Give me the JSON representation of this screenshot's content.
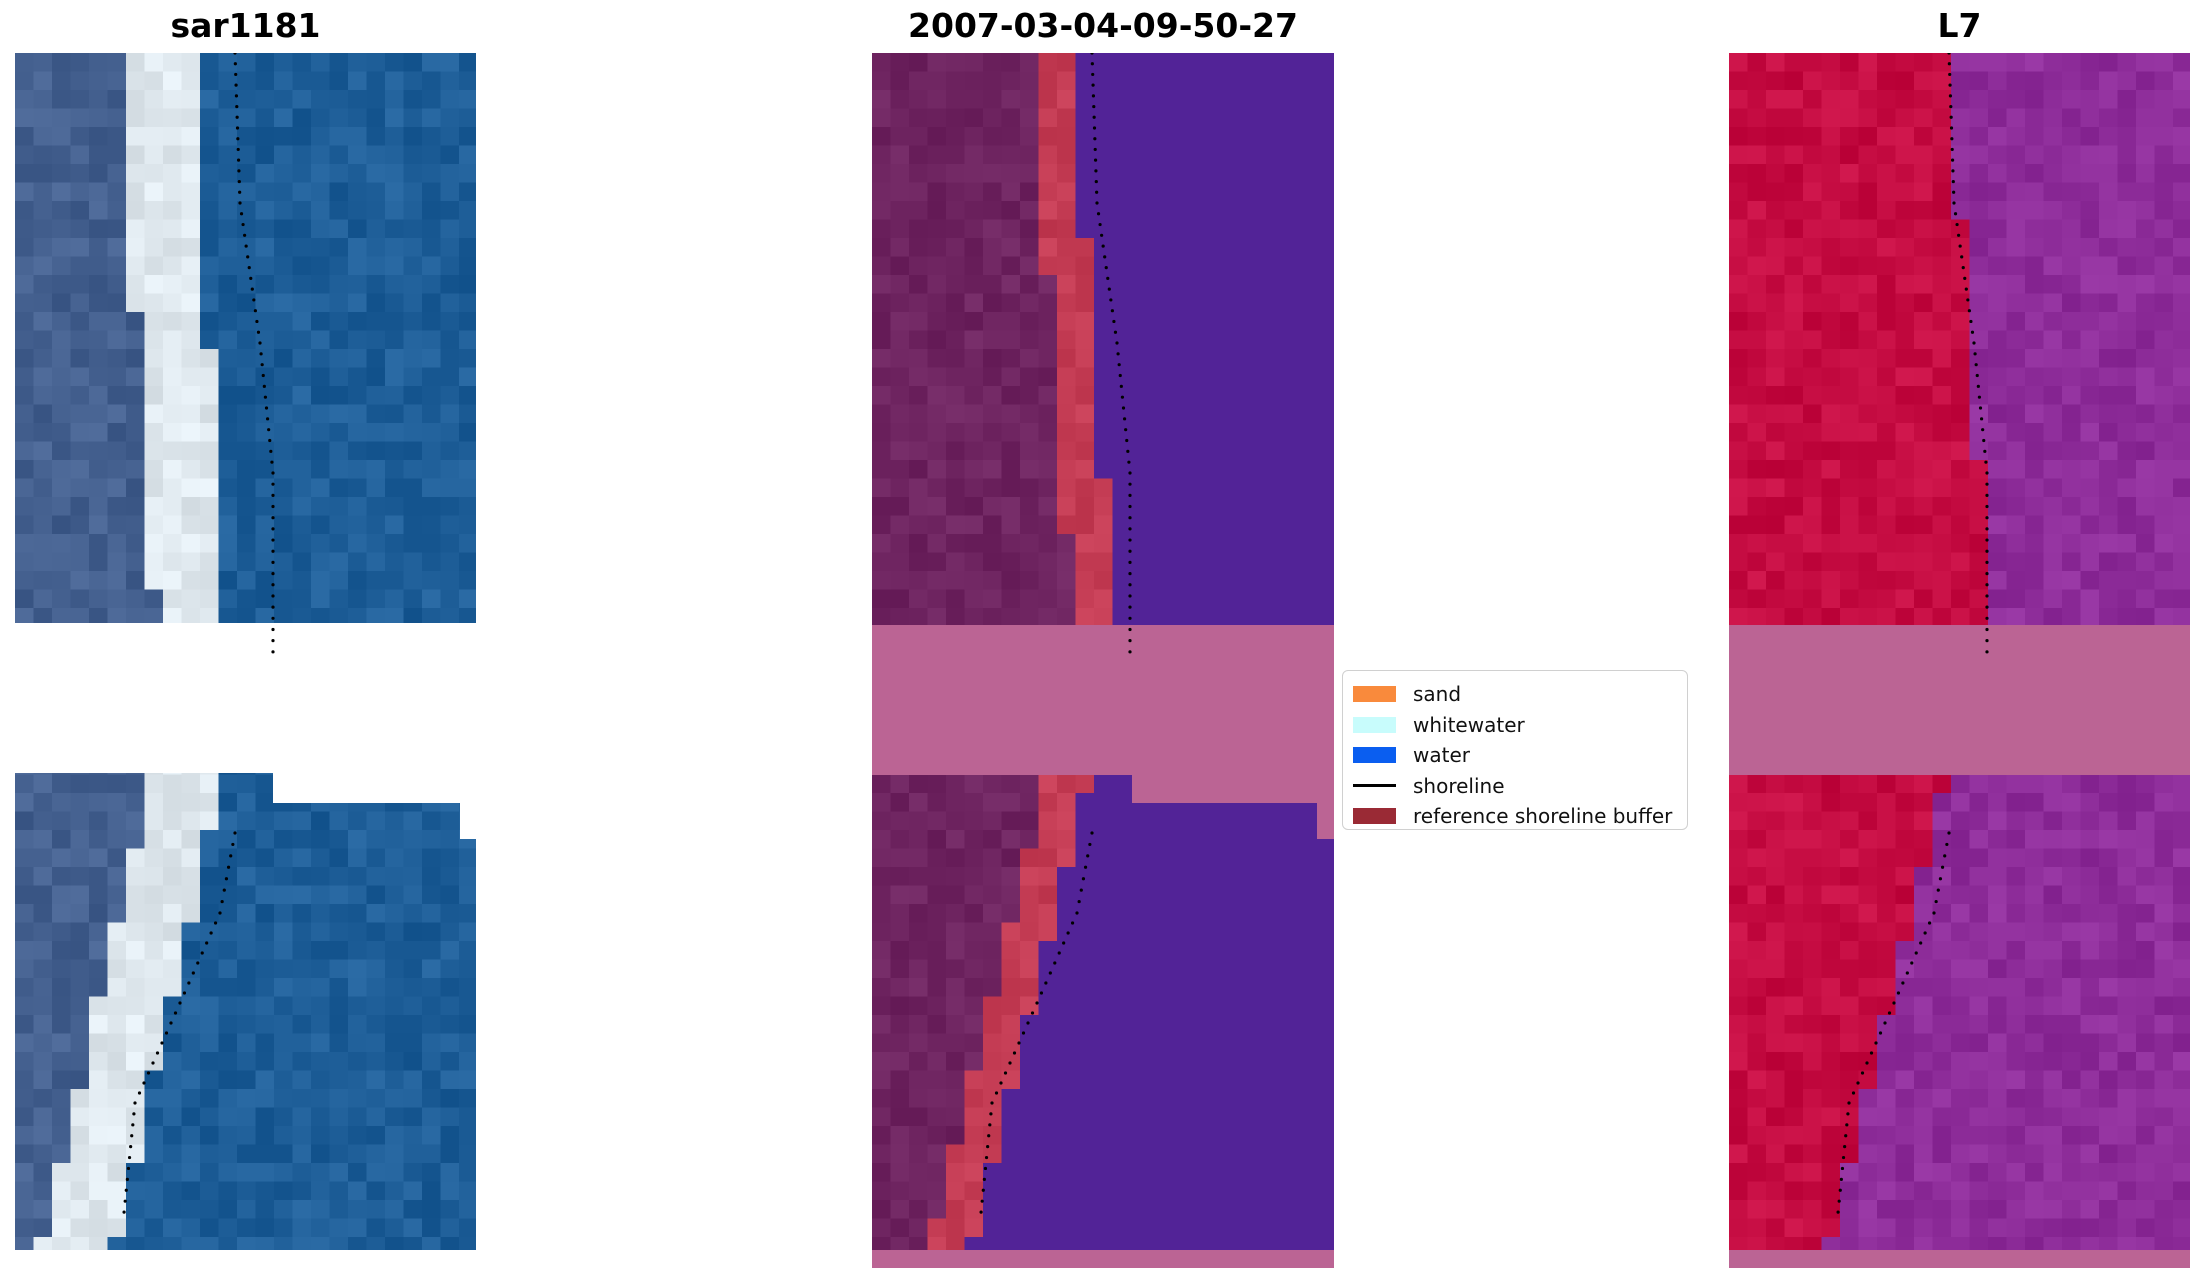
{
  "panels": [
    {
      "title": "sar1181"
    },
    {
      "title": "2007-03-04-09-50-27"
    },
    {
      "title": "L7"
    }
  ],
  "legend": {
    "items": [
      {
        "label": "sand",
        "color": "#f98a3c",
        "kind": "patch"
      },
      {
        "label": "whitewater",
        "color": "#c8fcfc",
        "kind": "patch"
      },
      {
        "label": "water",
        "color": "#0a5ef0",
        "kind": "patch"
      },
      {
        "label": "shoreline",
        "color": "#000000",
        "kind": "line"
      },
      {
        "label": "reference shoreline buffer",
        "color": "#9a2a35",
        "kind": "patch"
      }
    ]
  },
  "colors": {
    "rgb_land": "#44608f",
    "rgb_sand": "#dfe8ee",
    "rgb_water": "#1e5e98",
    "class_land": "#6e2460",
    "class_sand_buffer": "#c43c54",
    "class_water": "#522397",
    "class_nodata": "#bb6494",
    "fcc_land": "#c50c42",
    "fcc_water": "#8e2d9a",
    "fcc_nodata": "#bb6494"
  }
}
